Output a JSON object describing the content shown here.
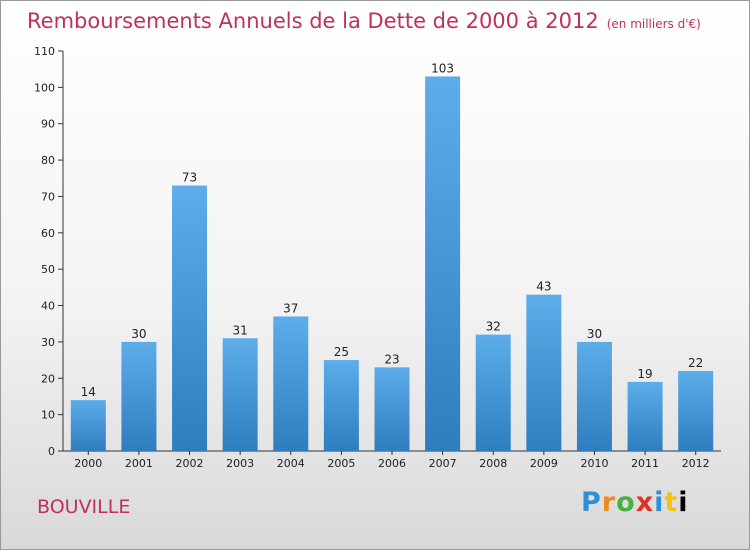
{
  "chart_data": {
    "type": "bar",
    "title": "Remboursements Annuels de la Dette de 2000 à 2012",
    "unit": "(en milliers d'€)",
    "categories": [
      "2000",
      "2001",
      "2002",
      "2003",
      "2004",
      "2005",
      "2006",
      "2007",
      "2008",
      "2009",
      "2010",
      "2011",
      "2012"
    ],
    "values": [
      14,
      30,
      73,
      31,
      37,
      25,
      23,
      103,
      32,
      43,
      30,
      19,
      22
    ],
    "ylim": [
      0,
      110
    ],
    "yticks": [
      0,
      10,
      20,
      30,
      40,
      50,
      60,
      70,
      80,
      90,
      100,
      110
    ],
    "grid": false,
    "legend": "none",
    "colors": {
      "bar_light": "#5dadea",
      "bar_dark": "#2e7dbf",
      "title": "#c0305a"
    }
  },
  "commune": "BOUVILLE",
  "logo": {
    "letters": [
      "P",
      "r",
      "o",
      "x",
      "i",
      "t",
      "i"
    ]
  }
}
